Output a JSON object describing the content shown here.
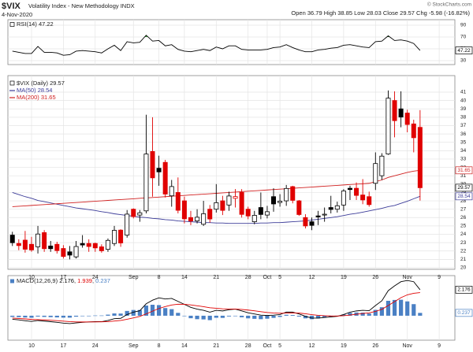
{
  "header": {
    "symbol": "$VIX",
    "title": "Volatility Index - New Methodology INDX",
    "date": "4-Nov-2020",
    "labels": {
      "open": "Open",
      "high": "High",
      "low": "Low",
      "close": "Close",
      "change": "Chg"
    },
    "change": "-5.98 (-16.82%)",
    "source": "© StockCharts.com"
  },
  "chart_data": [
    {
      "type": "candlestick",
      "name": "$VIX (Daily)",
      "categories": [
        null,
        null,
        null,
        "10",
        null,
        null,
        null,
        null,
        "17",
        null,
        null,
        null,
        null,
        "24",
        null,
        null,
        null,
        null,
        null,
        "Sep",
        null,
        null,
        null,
        "8",
        null,
        null,
        null,
        "14",
        null,
        null,
        null,
        null,
        "21",
        null,
        null,
        null,
        null,
        "28",
        null,
        null,
        "Oct",
        null,
        "5",
        null,
        null,
        null,
        null,
        "12",
        null,
        null,
        null,
        null,
        "19",
        null,
        null,
        null,
        null,
        "26",
        null,
        null,
        null,
        null,
        "Nov",
        null,
        null,
        null,
        null,
        "9",
        null,
        null
      ],
      "open": [
        23.9,
        22.9,
        23.3,
        22.8,
        22.5,
        24.2,
        22.6,
        22.8,
        22.3,
        21.9,
        21.3,
        22.9,
        22.9,
        22.9,
        22.5,
        22.2,
        22.9,
        24.5,
        23.9,
        27.0,
        26.3,
        26.8,
        33.9,
        31.9,
        32.6,
        28.6,
        29.0,
        28.0,
        26.0,
        25.6,
        25.2,
        27.0,
        27.0,
        28.0,
        27.5,
        28.3,
        29.0,
        27.0,
        25.5,
        27.2,
        26.3,
        28.5,
        27.8,
        28.0,
        29.7,
        28.0,
        26.0,
        25.5,
        26.2,
        26.3,
        27.2,
        27.0,
        27.5,
        29.5,
        29.5,
        28.7,
        28.5,
        30.1,
        31.0,
        33.6,
        40.0,
        39.0,
        38.5,
        37.2,
        36.79,
        null,
        null,
        null,
        null,
        null
      ],
      "high": [
        24.3,
        23.4,
        24.4,
        23.7,
        25.0,
        24.5,
        23.2,
        23.1,
        22.7,
        22.6,
        23.2,
        23.9,
        23.4,
        23.0,
        22.8,
        23.5,
        25.0,
        24.6,
        26.9,
        27.1,
        26.9,
        38.3,
        38.0,
        33.4,
        32.9,
        30.5,
        30.8,
        28.5,
        26.8,
        27.0,
        28.0,
        27.5,
        30.0,
        28.6,
        29.1,
        29.4,
        29.4,
        27.3,
        26.8,
        29.0,
        27.4,
        29.5,
        28.8,
        29.9,
        29.8,
        28.1,
        26.4,
        26.0,
        26.8,
        27.2,
        28.6,
        27.9,
        29.4,
        29.8,
        30.2,
        30.6,
        29.1,
        33.8,
        33.7,
        41.2,
        41.1,
        41.1,
        38.9,
        37.7,
        38.85,
        null,
        null,
        null,
        null,
        null
      ],
      "low": [
        22.6,
        22.1,
        21.8,
        21.9,
        21.7,
        21.9,
        21.9,
        21.7,
        21.1,
        21.0,
        21.1,
        22.4,
        21.9,
        21.9,
        21.8,
        21.9,
        22.6,
        22.5,
        23.6,
        25.9,
        25.5,
        26.5,
        28.5,
        29.8,
        28.4,
        27.3,
        26.5,
        25.3,
        25.1,
        25.3,
        25.0,
        25.4,
        26.6,
        26.3,
        26.8,
        27.2,
        26.0,
        25.8,
        25.2,
        25.8,
        25.9,
        26.7,
        27.3,
        27.4,
        27.7,
        26.2,
        24.7,
        24.5,
        25.1,
        25.5,
        26.5,
        26.6,
        26.8,
        28.1,
        28.1,
        27.6,
        27.3,
        29.3,
        30.5,
        33.5,
        35.6,
        36.8,
        36.2,
        33.8,
        28.03,
        null,
        null,
        null,
        null,
        null
      ],
      "close": [
        22.99,
        22.65,
        22.21,
        22.13,
        24.03,
        22.28,
        22.28,
        22.05,
        21.35,
        21.51,
        22.54,
        22.72,
        22.54,
        22.37,
        22.03,
        23.27,
        24.47,
        22.96,
        26.41,
        26.12,
        26.57,
        33.6,
        30.75,
        31.46,
        28.81,
        29.71,
        26.87,
        25.85,
        25.59,
        26.04,
        26.46,
        25.83,
        27.78,
        26.86,
        28.58,
        28.51,
        26.38,
        26.19,
        26.27,
        26.37,
        26.7,
        27.63,
        27.96,
        29.48,
        28.06,
        26.36,
        25.0,
        25.07,
        26.07,
        26.4,
        26.97,
        27.41,
        29.18,
        29.35,
        28.65,
        28.11,
        27.55,
        32.46,
        33.35,
        40.28,
        37.59,
        38.02,
        37.13,
        35.55,
        29.57,
        null,
        null,
        null,
        null,
        null
      ],
      "up_color": "#000000",
      "down_color": "#e00000",
      "series": [
        {
          "name": "MA(50)",
          "color": "#3b3b98",
          "values": [
            29.0,
            28.75,
            28.5,
            28.3,
            28.05,
            27.9,
            27.75,
            27.6,
            27.45,
            27.3,
            27.15,
            27.05,
            26.95,
            26.85,
            26.7,
            26.6,
            26.45,
            26.35,
            26.25,
            26.15,
            26.05,
            26.0,
            25.9,
            25.85,
            25.75,
            25.7,
            25.6,
            25.55,
            25.5,
            25.45,
            25.4,
            25.4,
            25.35,
            25.35,
            25.3,
            25.3,
            25.3,
            25.3,
            25.3,
            25.35,
            25.35,
            25.4,
            25.4,
            25.45,
            25.5,
            25.55,
            25.6,
            25.7,
            25.8,
            25.9,
            26.0,
            26.1,
            26.25,
            26.4,
            26.5,
            26.65,
            26.8,
            26.95,
            27.1,
            27.3,
            27.45,
            27.7,
            27.95,
            28.25,
            28.54,
            null,
            null,
            null,
            null,
            null
          ]
        },
        {
          "name": "MA(200)",
          "color": "#d02020",
          "values": [
            27.3,
            27.35,
            27.4,
            27.45,
            27.5,
            27.55,
            27.6,
            27.65,
            27.7,
            27.75,
            27.8,
            27.85,
            27.9,
            27.95,
            28.0,
            28.05,
            28.1,
            28.15,
            28.2,
            28.25,
            28.3,
            28.35,
            28.4,
            28.45,
            28.5,
            28.55,
            28.6,
            28.65,
            28.7,
            28.75,
            28.8,
            28.85,
            28.9,
            28.95,
            29.0,
            29.05,
            29.1,
            29.15,
            29.2,
            29.25,
            29.3,
            29.35,
            29.4,
            29.45,
            29.5,
            29.55,
            29.6,
            29.65,
            29.7,
            29.75,
            29.8,
            29.85,
            29.9,
            29.95,
            30.0,
            30.05,
            30.1,
            30.3,
            30.5,
            30.8,
            31.0,
            31.2,
            31.4,
            31.55,
            31.65,
            null,
            null,
            null,
            null,
            null
          ]
        }
      ],
      "ylim": [
        19.81,
        42.98
      ],
      "yticks": [
        20,
        21,
        22,
        23,
        24,
        25,
        26,
        27,
        28,
        29,
        30,
        31,
        32,
        33,
        34,
        35,
        36,
        37,
        38,
        39,
        40,
        41
      ],
      "grid": true
    },
    {
      "type": "line",
      "series": [
        {
          "name": "RSI(14)",
          "color": "#000000",
          "values": [
            46,
            44,
            42,
            42,
            54,
            44,
            44,
            43,
            39,
            40,
            46,
            47,
            46,
            45,
            43,
            50,
            56,
            47,
            62,
            60,
            61,
            73,
            63,
            64,
            55,
            57,
            49,
            46,
            45,
            47,
            49,
            47,
            53,
            50,
            55,
            55,
            49,
            48,
            48,
            48,
            49,
            52,
            53,
            57,
            52,
            48,
            45,
            45,
            48,
            49,
            51,
            52,
            56,
            57,
            55,
            53,
            52,
            62,
            63,
            72,
            64,
            65,
            63,
            59,
            47.22,
            null,
            null,
            null,
            null,
            null
          ]
        }
      ],
      "ylim": [
        23.3,
        99.3
      ],
      "yticks": [
        30,
        50,
        70,
        90
      ],
      "fill_above": 70,
      "fill_color": "#3d9a3d",
      "grid": true
    },
    {
      "type": "macd",
      "name": "MACD(12,26,9)",
      "series": [
        {
          "kind": "line",
          "color": "#000000",
          "values": [
            -0.3,
            -0.35,
            -0.42,
            -0.48,
            -0.4,
            -0.45,
            -0.5,
            -0.55,
            -0.62,
            -0.66,
            -0.6,
            -0.55,
            -0.52,
            -0.5,
            -0.5,
            -0.4,
            -0.25,
            -0.22,
            0.1,
            0.3,
            0.42,
            1.0,
            1.3,
            1.5,
            1.4,
            1.45,
            1.2,
            0.95,
            0.7,
            0.55,
            0.45,
            0.3,
            0.45,
            0.4,
            0.5,
            0.55,
            0.4,
            0.25,
            0.15,
            0.05,
            0.02,
            0.05,
            0.1,
            0.3,
            0.3,
            0.15,
            -0.05,
            -0.2,
            -0.2,
            -0.15,
            -0.1,
            -0.05,
            0.1,
            0.3,
            0.4,
            0.45,
            0.42,
            0.85,
            1.25,
            2.1,
            2.5,
            2.85,
            2.95,
            2.85,
            2.176,
            null,
            null,
            null,
            null,
            null
          ]
        },
        {
          "kind": "line",
          "color": "#e00000",
          "values": [
            -0.2,
            -0.23,
            -0.268,
            -0.31,
            -0.328,
            -0.352,
            -0.382,
            -0.415,
            -0.456,
            -0.497,
            -0.518,
            -0.524,
            -0.523,
            -0.518,
            -0.515,
            -0.492,
            -0.443,
            -0.399,
            -0.299,
            -0.179,
            -0.059,
            0.153,
            0.382,
            0.606,
            0.765,
            0.902,
            0.962,
            0.959,
            0.907,
            0.836,
            0.759,
            0.667,
            0.624,
            0.579,
            0.563,
            0.56,
            0.528,
            0.473,
            0.408,
            0.336,
            0.273,
            0.228,
            0.203,
            0.222,
            0.238,
            0.22,
            0.166,
            0.093,
            0.034,
            -0.003,
            -0.022,
            -0.028,
            -0.002,
            0.058,
            0.126,
            0.191,
            0.237,
            0.359,
            0.537,
            0.85,
            1.18,
            1.514,
            1.75,
            1.88,
            1.939,
            null,
            null,
            null,
            null,
            null
          ]
        },
        {
          "kind": "bar",
          "color": "#4a80c4",
          "values": [
            -0.1,
            -0.12,
            -0.15,
            -0.17,
            -0.07,
            -0.1,
            -0.12,
            -0.14,
            -0.16,
            -0.16,
            -0.08,
            -0.03,
            0.0,
            0.02,
            0.02,
            0.09,
            0.19,
            0.18,
            0.4,
            0.48,
            0.48,
            0.85,
            0.92,
            0.89,
            0.64,
            0.55,
            0.24,
            -0.01,
            -0.21,
            -0.29,
            -0.31,
            -0.37,
            -0.17,
            -0.18,
            -0.06,
            -0.01,
            -0.13,
            -0.22,
            -0.26,
            -0.29,
            -0.25,
            -0.18,
            -0.1,
            0.08,
            0.06,
            -0.07,
            -0.22,
            -0.29,
            -0.23,
            -0.15,
            -0.08,
            -0.02,
            0.1,
            0.24,
            0.27,
            0.26,
            0.18,
            0.49,
            0.71,
            1.25,
            1.32,
            1.34,
            1.2,
            0.97,
            0.237,
            null,
            null,
            null,
            null,
            null
          ]
        }
      ],
      "ylim": [
        -2.05,
        3.36
      ]
    }
  ]
}
